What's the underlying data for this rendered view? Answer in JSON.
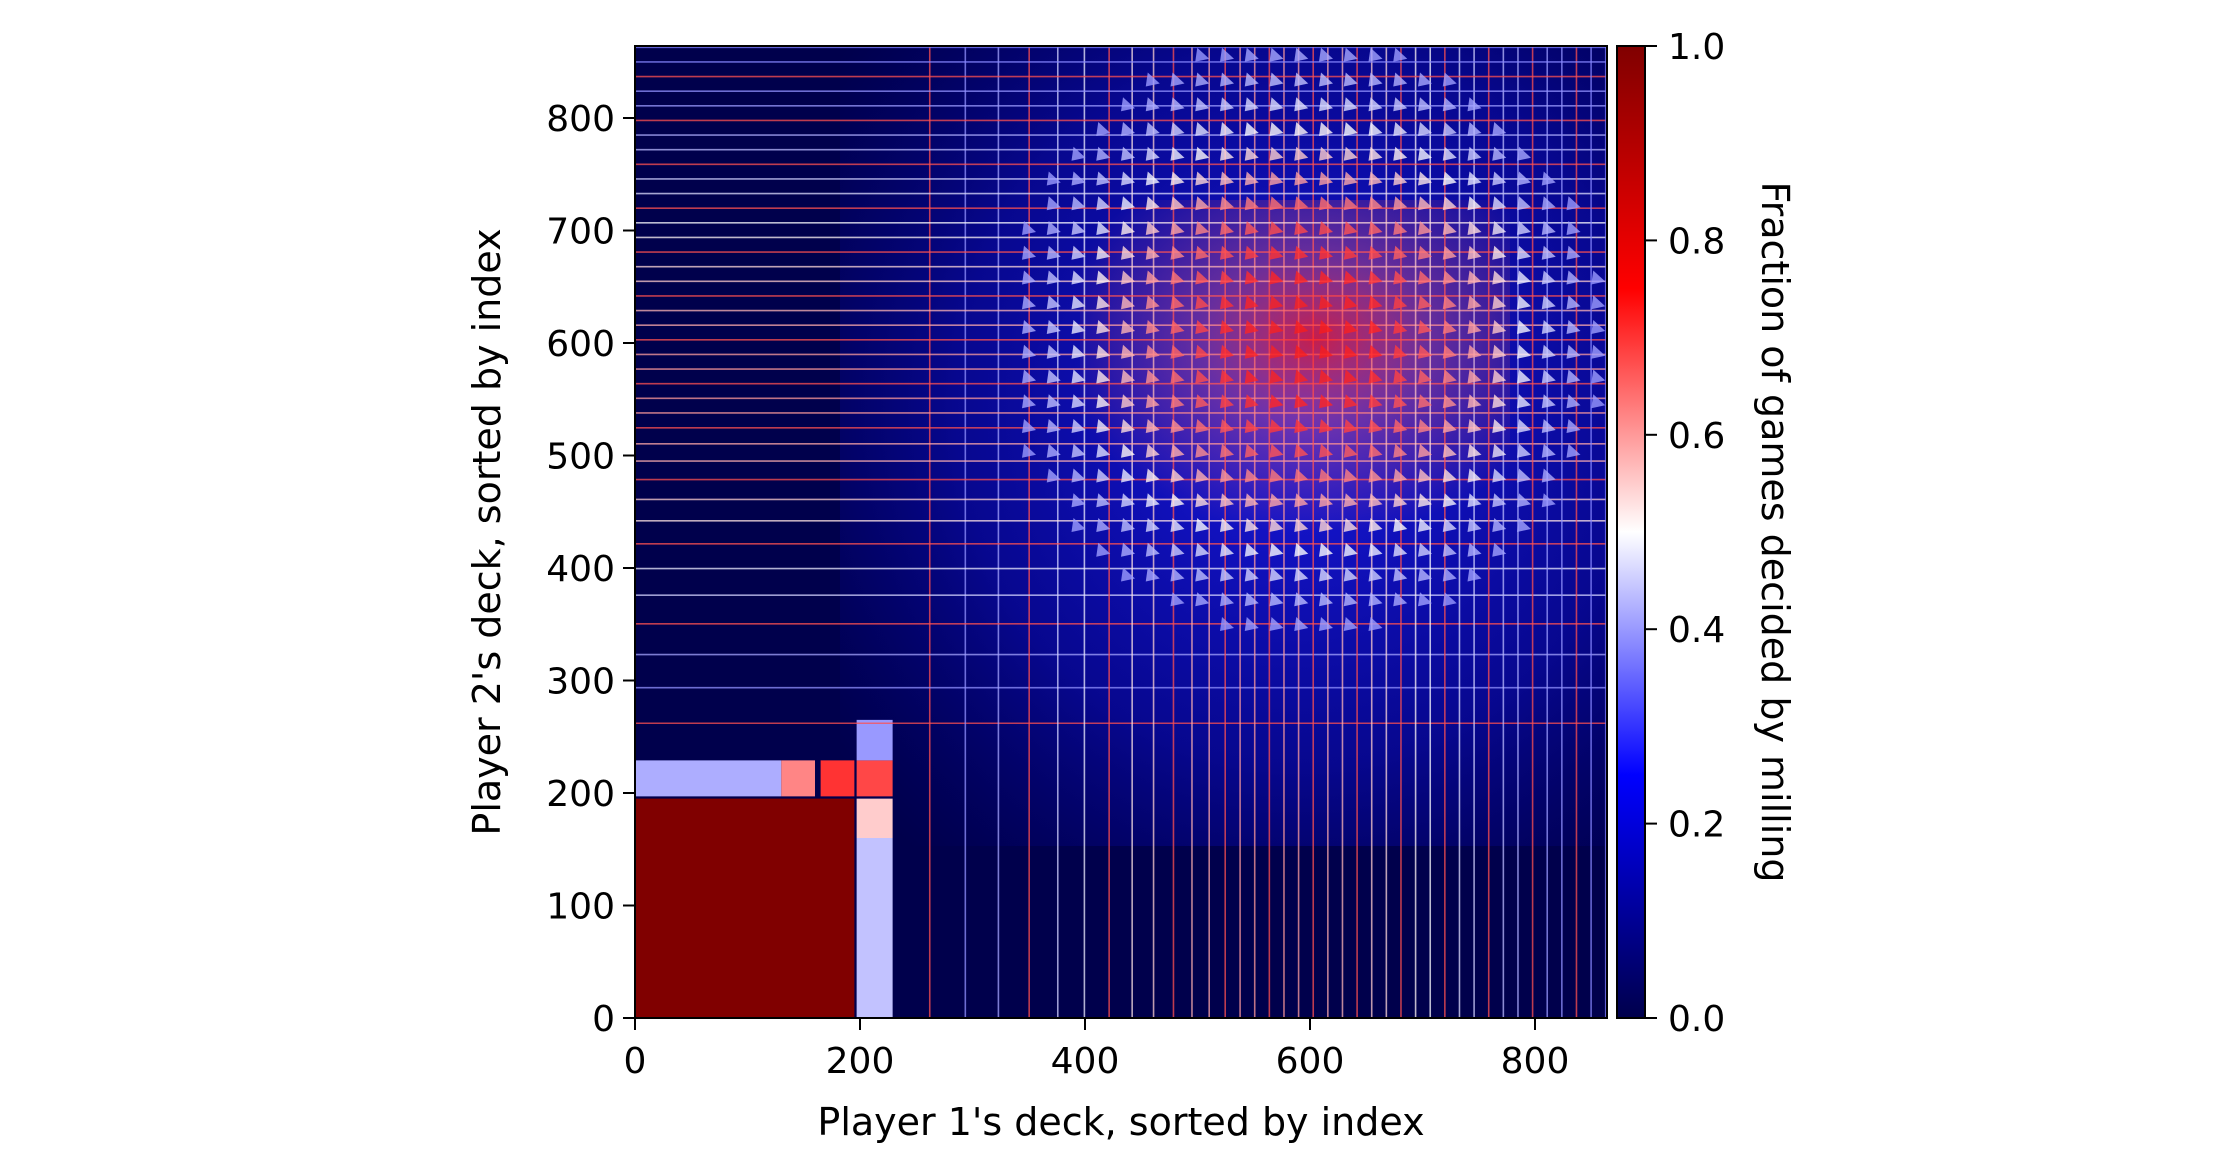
{
  "chart_data": {
    "type": "heatmap",
    "title": "",
    "xlabel": "Player 1's deck, sorted by index",
    "ylabel": "Player 2's deck, sorted by index",
    "xlim": [
      0,
      864
    ],
    "ylim": [
      0,
      864
    ],
    "xticks": [
      0,
      200,
      400,
      600,
      800
    ],
    "yticks": [
      0,
      100,
      200,
      300,
      400,
      500,
      600,
      700,
      800
    ],
    "xtick_labels": [
      "0",
      "200",
      "400",
      "600",
      "800"
    ],
    "ytick_labels": [
      "0",
      "100",
      "200",
      "300",
      "400",
      "500",
      "600",
      "700",
      "800"
    ],
    "colorbar": {
      "label": "Fraction of games decided by milling",
      "range": [
        0.0,
        1.0
      ],
      "ticks": [
        0.0,
        0.2,
        0.4,
        0.6,
        0.8,
        1.0
      ],
      "tick_labels": [
        "0.0",
        "0.2",
        "0.4",
        "0.6",
        "0.8",
        "1.0"
      ],
      "colormap": "seismic",
      "stops": [
        {
          "value": 0.0,
          "color": "#00004c"
        },
        {
          "value": 0.25,
          "color": "#0000ff"
        },
        {
          "value": 0.5,
          "color": "#ffffff"
        },
        {
          "value": 0.75,
          "color": "#ff0000"
        },
        {
          "value": 1.0,
          "color": "#800000"
        }
      ]
    },
    "blocks": [
      {
        "name": "lower-left block",
        "x": [
          0,
          195
        ],
        "y": [
          0,
          195
        ],
        "value": 1.0
      },
      {
        "name": "left band",
        "x": [
          0,
          130
        ],
        "y": [
          197,
          229
        ],
        "value": 0.42
      },
      {
        "name": "left band bright",
        "x": [
          130,
          160
        ],
        "y": [
          197,
          229
        ],
        "value": 0.62
      },
      {
        "name": "left band red",
        "x": [
          165,
          195
        ],
        "y": [
          197,
          229
        ],
        "value": 0.7
      },
      {
        "name": "vertical band",
        "x": [
          197,
          229
        ],
        "y": [
          0,
          160
        ],
        "value": 0.44
      },
      {
        "name": "vertical band bright",
        "x": [
          197,
          229
        ],
        "y": [
          160,
          195
        ],
        "value": 0.55
      },
      {
        "name": "corner cell",
        "x": [
          197,
          229
        ],
        "y": [
          197,
          229
        ],
        "value": 0.68
      },
      {
        "name": "corner cell upper",
        "x": [
          197,
          229
        ],
        "y": [
          229,
          265
        ],
        "value": 0.4
      }
    ],
    "dominant_region": {
      "x": [
        430,
        750
      ],
      "y": [
        430,
        750
      ],
      "peak_value": 0.9
    },
    "grid": false,
    "legend": "none"
  }
}
